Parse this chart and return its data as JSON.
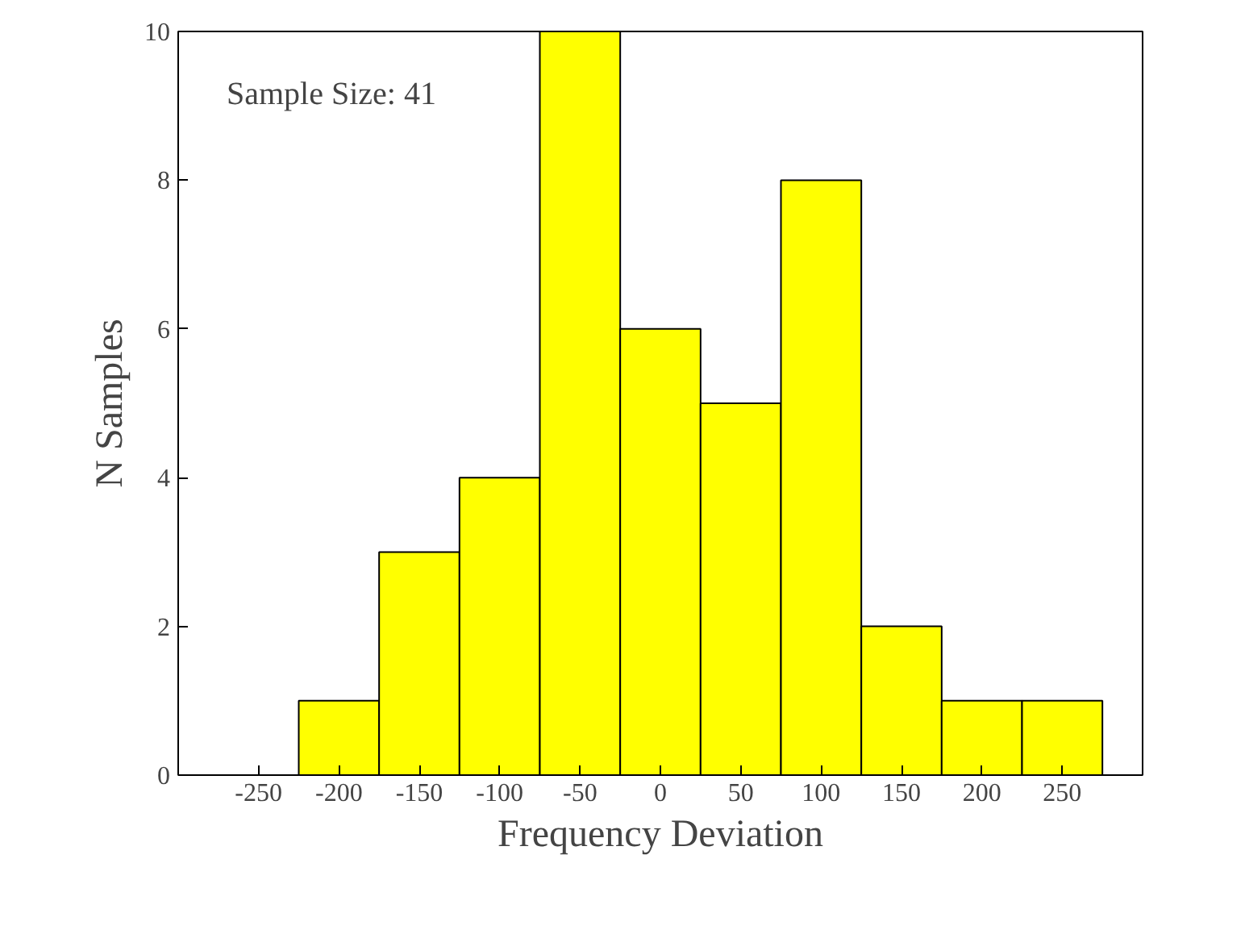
{
  "chart_data": {
    "type": "histogram",
    "xlabel": "Frequency Deviation",
    "ylabel": "N Samples",
    "bins": [
      -225,
      -175,
      -125,
      -75,
      -25,
      25,
      75,
      125,
      175,
      225,
      275
    ],
    "values": [
      1,
      3,
      4,
      10,
      6,
      5,
      8,
      2,
      1,
      1
    ],
    "color": "#ffff00",
    "xlim": [
      -300,
      300
    ],
    "xticks": [
      -250,
      -200,
      -150,
      -100,
      -50,
      0,
      50,
      100,
      150,
      200,
      250
    ],
    "ylim": [
      0,
      10
    ],
    "yticks": [
      0,
      2,
      4,
      6,
      8,
      10
    ],
    "grid": false,
    "annotations": [
      "Sample Size: 41"
    ]
  }
}
